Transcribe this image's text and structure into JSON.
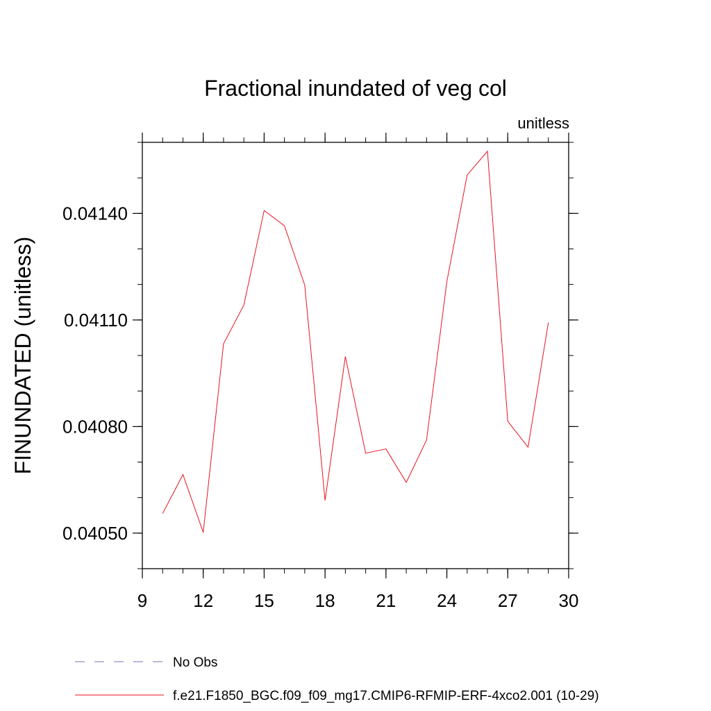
{
  "chart_data": {
    "type": "line",
    "title": "Fractional inundated of veg col",
    "units_label": "unitless",
    "ylabel": "FINUNDATED  (unitless)",
    "xlabel": "",
    "xlim": [
      9,
      30
    ],
    "ylim": [
      0.0404,
      0.0416
    ],
    "x_ticks": [
      9,
      12,
      15,
      18,
      21,
      24,
      27,
      30
    ],
    "x_tick_labels": [
      "9",
      "12",
      "15",
      "18",
      "21",
      "24",
      "27",
      "30"
    ],
    "x_minor_step": 1,
    "y_ticks": [
      0.0405,
      0.0408,
      0.0411,
      0.0414
    ],
    "y_tick_labels": [
      "0.04050",
      "0.04080",
      "0.04110",
      "0.04140"
    ],
    "y_minor_step": 0.0001,
    "grid": false,
    "legend_placement": "bottom",
    "series": [
      {
        "name": "f.e21.F1850_BGC.f09_f09_mg17.CMIP6-RFMIP-ERF-4xco2.001 (10-29)",
        "color": "#e8121f",
        "style": "solid",
        "x": [
          10,
          11,
          12,
          13,
          14,
          15,
          16,
          17,
          18,
          19,
          20,
          21,
          22,
          23,
          24,
          25,
          26,
          27,
          28,
          29
        ],
        "y": [
          0.040555,
          0.040665,
          0.040502,
          0.041033,
          0.041142,
          0.041408,
          0.041365,
          0.041198,
          0.040592,
          0.040997,
          0.040725,
          0.040737,
          0.040643,
          0.040762,
          0.041208,
          0.041508,
          0.041575,
          0.040815,
          0.040742,
          0.041093
        ]
      }
    ],
    "legend": [
      {
        "label": "No Obs",
        "color": "#7b6bb5",
        "style": "dashed"
      },
      {
        "label": "f.e21.F1850_BGC.f09_f09_mg17.CMIP6-RFMIP-ERF-4xco2.001 (10-29)",
        "color": "#e8121f",
        "style": "solid"
      }
    ]
  }
}
